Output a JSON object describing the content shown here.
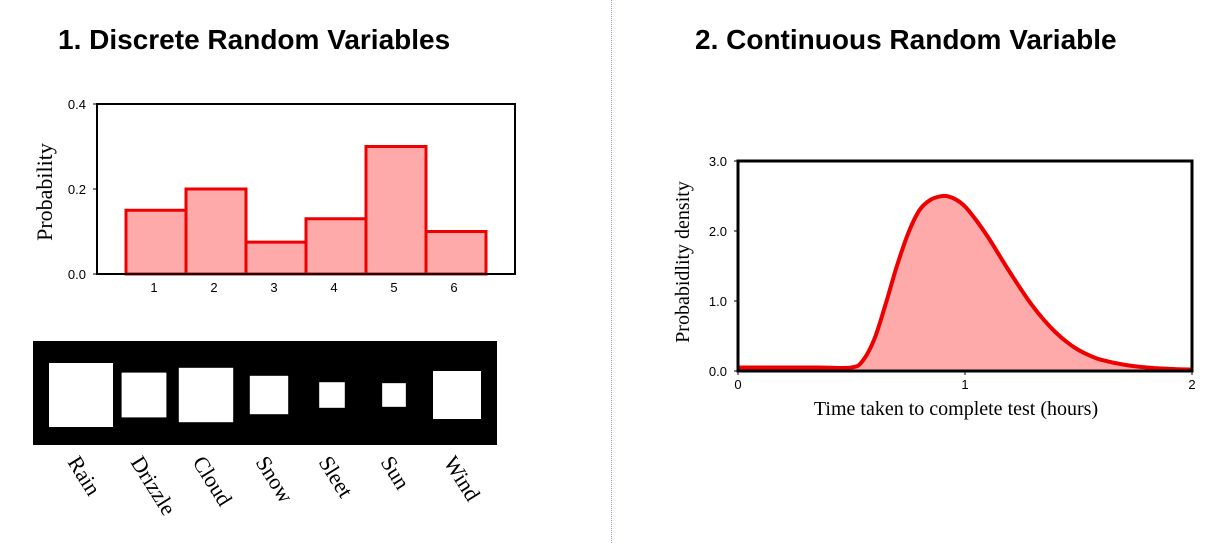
{
  "colors": {
    "bar_fill": "#ffaaaa",
    "bar_stroke": "#ee0000",
    "curve_fill": "#ffaaaa",
    "curve_stroke": "#ee0000",
    "legend_background": "#000000",
    "legend_swatch": "#ffffff",
    "divider": "#8a9ad6"
  },
  "chart_data": [
    {
      "type": "bar",
      "title": "1. Discrete Random Variables",
      "ylabel": "Probability",
      "xlabel": "",
      "categories": [
        "1",
        "2",
        "3",
        "4",
        "5",
        "6"
      ],
      "values": [
        0.15,
        0.2,
        0.075,
        0.13,
        0.3,
        0.1
      ],
      "ylim": [
        0,
        0.4
      ],
      "yticks": [
        "0.0",
        "0.2",
        "0.4"
      ],
      "grid": false,
      "legend": {
        "placement": "below",
        "labels": [
          "Rain",
          "Drizzle",
          "Cloud",
          "Snow",
          "Sleet",
          "Sun",
          "Wind"
        ],
        "swatch_relative_sizes": [
          1.0,
          0.7,
          0.85,
          0.6,
          0.4,
          0.37,
          0.75
        ]
      }
    },
    {
      "type": "area",
      "title": "2. Continuous Random Variable",
      "xlabel": "Time taken to complete test (hours)",
      "ylabel": "Probabidlity density",
      "xlim": [
        0,
        2
      ],
      "ylim": [
        0,
        3
      ],
      "xticks": [
        "0",
        "1",
        "2"
      ],
      "yticks": [
        "0.0",
        "1.0",
        "2.0",
        "3.0"
      ],
      "grid": false,
      "series": [
        {
          "x": [
            0,
            0.35,
            0.5,
            0.55,
            0.6,
            0.65,
            0.7,
            0.75,
            0.8,
            0.85,
            0.9,
            0.93,
            0.96,
            1.0,
            1.05,
            1.1,
            1.15,
            1.2,
            1.25,
            1.3,
            1.35,
            1.4,
            1.45,
            1.5,
            1.55,
            1.6,
            1.7,
            1.8,
            1.9,
            2.0
          ],
          "y": [
            0.05,
            0.05,
            0.05,
            0.15,
            0.45,
            0.95,
            1.5,
            1.97,
            2.3,
            2.45,
            2.5,
            2.49,
            2.45,
            2.35,
            2.15,
            1.92,
            1.66,
            1.4,
            1.15,
            0.92,
            0.72,
            0.55,
            0.41,
            0.3,
            0.22,
            0.16,
            0.09,
            0.05,
            0.03,
            0.02
          ]
        }
      ]
    }
  ]
}
